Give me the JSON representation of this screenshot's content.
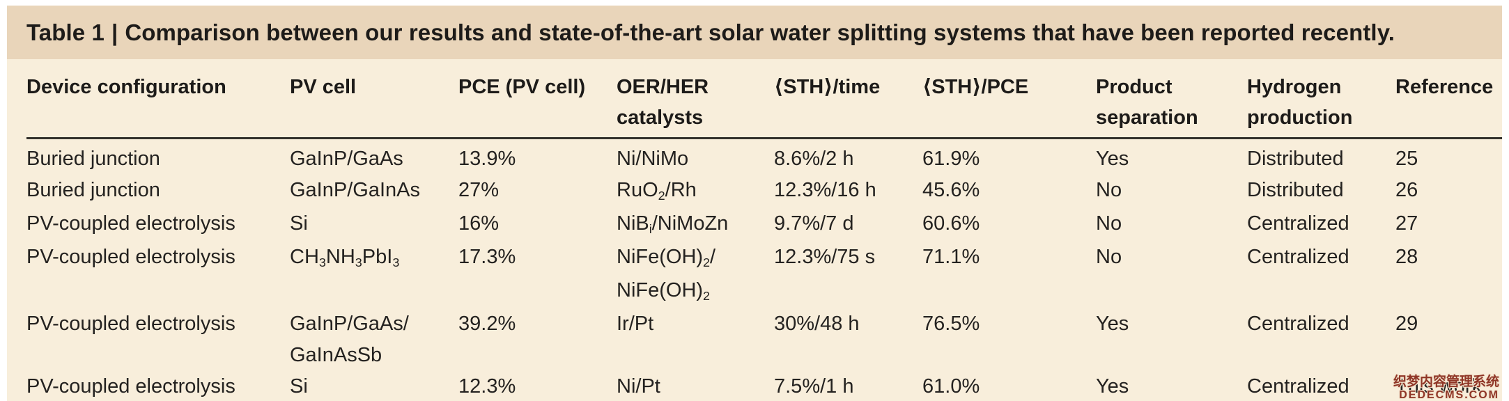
{
  "title": {
    "label": "Table 1",
    "separator": "|",
    "text": "Comparison between our results and state-of-the-art solar water splitting systems that have been reported recently."
  },
  "colors": {
    "title_band": "#e9d5ba",
    "body_background": "#f8eedb",
    "text": "#242220",
    "header_rule": "#34312c",
    "watermark": "#8f3526"
  },
  "table": {
    "columns": [
      {
        "label": "Device configuration"
      },
      {
        "label": "PV cell"
      },
      {
        "label": "PCE (PV cell)"
      },
      {
        "label": "OER/HER catalysts"
      },
      {
        "label": "⟨STH⟩/time"
      },
      {
        "label": "⟨STH⟩/PCE"
      },
      {
        "label": "Product separation"
      },
      {
        "label": "Hydrogen production"
      },
      {
        "label": "Reference"
      }
    ],
    "rows": [
      [
        "Buried junction",
        "GaInP/GaAs",
        "13.9%",
        "Ni/NiMo",
        "8.6%/2 h",
        "61.9%",
        "Yes",
        "Distributed",
        "25"
      ],
      [
        "Buried junction",
        "GaInP/GaInAs",
        "27%",
        "RuO<sub>2</sub>/Rh",
        "12.3%/16 h",
        "45.6%",
        "No",
        "Distributed",
        "26"
      ],
      [
        "PV-coupled electrolysis",
        "Si",
        "16%",
        "NiB<sub>i</sub>/NiMoZn",
        "9.7%/7 d",
        "60.6%",
        "No",
        "Centralized",
        "27"
      ],
      [
        "PV-coupled electrolysis",
        "CH<sub>3</sub>NH<sub>3</sub>PbI<sub>3</sub>",
        "17.3%",
        "NiFe(OH)<sub>2</sub>/<br>NiFe(OH)<sub>2</sub>",
        "12.3%/75 s",
        "71.1%",
        "No",
        "Centralized",
        "28"
      ],
      [
        "PV-coupled electrolysis",
        "GaInP/GaAs/<br>GaInAsSb",
        "39.2%",
        "Ir/Pt",
        "30%/48 h",
        "76.5%",
        "Yes",
        "Centralized",
        "29"
      ],
      [
        "PV-coupled electrolysis",
        "Si",
        "12.3%",
        "Ni/Pt",
        "7.5%/1 h",
        "61.0%",
        "Yes",
        "Centralized",
        "This work"
      ]
    ]
  },
  "watermark": {
    "line1": "织梦内容管理系统",
    "line2": "DEDECMS.COM"
  }
}
